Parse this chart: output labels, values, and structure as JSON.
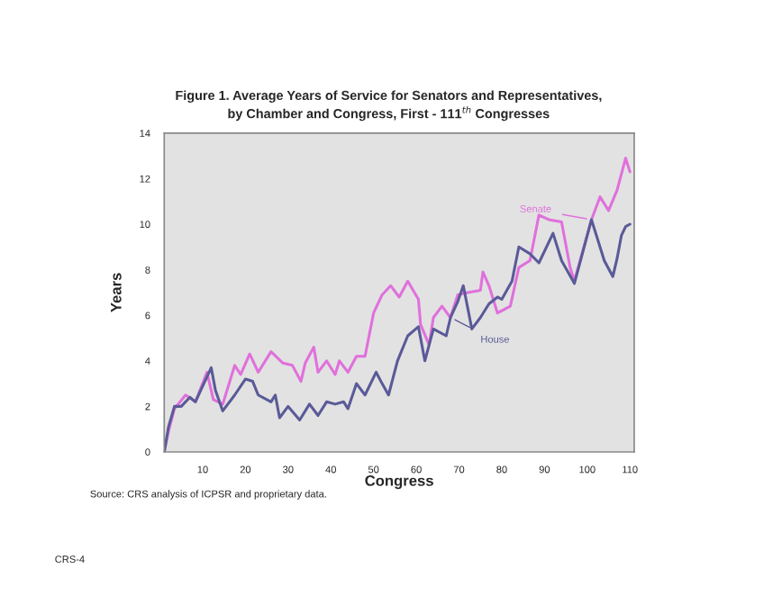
{
  "chart_data": {
    "type": "line",
    "title": "Figure 1. Average Years of Service for Senators and Representatives,\nby Chamber and Congress, First - 111$^{th}$ Congresses",
    "xlabel": "Congress",
    "ylabel": "Years",
    "xlim": [
      1,
      111
    ],
    "xticks": [
      10,
      20,
      30,
      40,
      50,
      60,
      70,
      80,
      90,
      100,
      110
    ],
    "ylim": [
      0,
      14
    ],
    "yticks": [
      0,
      2,
      4,
      6,
      8,
      10,
      12,
      14
    ],
    "grid": false,
    "legend": false,
    "marker": "none",
    "line_style": "solid",
    "series": [
      {
        "name": "Senate",
        "color": "#e070dc",
        "x": [
          1,
          2,
          3.4,
          6,
          8.3,
          11,
          12.5,
          14.7,
          17.5,
          18.9,
          21,
          23,
          26,
          28.8,
          31,
          33,
          34,
          36,
          37,
          39,
          41,
          42,
          44,
          46,
          48,
          50,
          52,
          54,
          56,
          58,
          60.5,
          61,
          63,
          64,
          66,
          68,
          69.7,
          72,
          75,
          75.6,
          77,
          79,
          82,
          84,
          86.6,
          88.7,
          91,
          94,
          96,
          97,
          101,
          103,
          105,
          107,
          108,
          109,
          110
        ],
        "values": [
          0,
          0.9,
          1.9,
          2.5,
          2.2,
          3.5,
          2.3,
          2.1,
          3.8,
          3.4,
          4.3,
          3.5,
          4.4,
          3.9,
          3.8,
          3.1,
          3.9,
          4.6,
          3.5,
          4.0,
          3.4,
          4.0,
          3.5,
          4.2,
          4.2,
          6.1,
          6.9,
          7.3,
          6.8,
          7.5,
          6.7,
          5.6,
          4.7,
          5.9,
          6.4,
          5.9,
          6.9,
          7.0,
          7.1,
          7.9,
          7.3,
          6.1,
          6.4,
          8.1,
          8.4,
          10.4,
          10.2,
          10.1,
          8.1,
          7.5,
          10.2,
          11.2,
          10.6,
          11.5,
          12.2,
          12.9,
          12.3
        ]
      },
      {
        "name": "House",
        "color": "#5a5a98",
        "x": [
          1,
          2,
          3.4,
          5,
          7,
          8.3,
          12,
          13,
          14.7,
          17.5,
          20,
          21.7,
          23,
          26,
          27,
          28,
          30,
          32.7,
          35,
          37,
          39,
          41,
          43,
          44,
          46,
          48,
          50.6,
          52,
          53.5,
          55.6,
          58,
          60.5,
          62,
          64,
          67,
          68,
          69.7,
          71,
          73,
          75,
          77,
          79,
          80,
          82.4,
          84,
          86.6,
          88.7,
          92,
          94,
          97,
          101,
          104,
          106,
          107,
          108,
          109,
          110
        ],
        "values": [
          0,
          1.1,
          2.0,
          2.0,
          2.4,
          2.2,
          3.7,
          2.7,
          1.8,
          2.5,
          3.2,
          3.1,
          2.5,
          2.2,
          2.5,
          1.5,
          2.0,
          1.4,
          2.1,
          1.6,
          2.2,
          2.1,
          2.2,
          1.9,
          3.0,
          2.5,
          3.5,
          3.0,
          2.5,
          4.0,
          5.1,
          5.5,
          4.0,
          5.4,
          5.1,
          5.9,
          6.6,
          7.3,
          5.4,
          5.9,
          6.5,
          6.8,
          6.7,
          7.5,
          9.0,
          8.7,
          8.3,
          9.6,
          8.4,
          7.4,
          10.2,
          8.4,
          7.7,
          8.5,
          9.5,
          9.9,
          10.0
        ]
      }
    ],
    "annotations": [
      "Source: CRS analysis of ICPSR and proprietary data.",
      "CRS-4"
    ]
  }
}
